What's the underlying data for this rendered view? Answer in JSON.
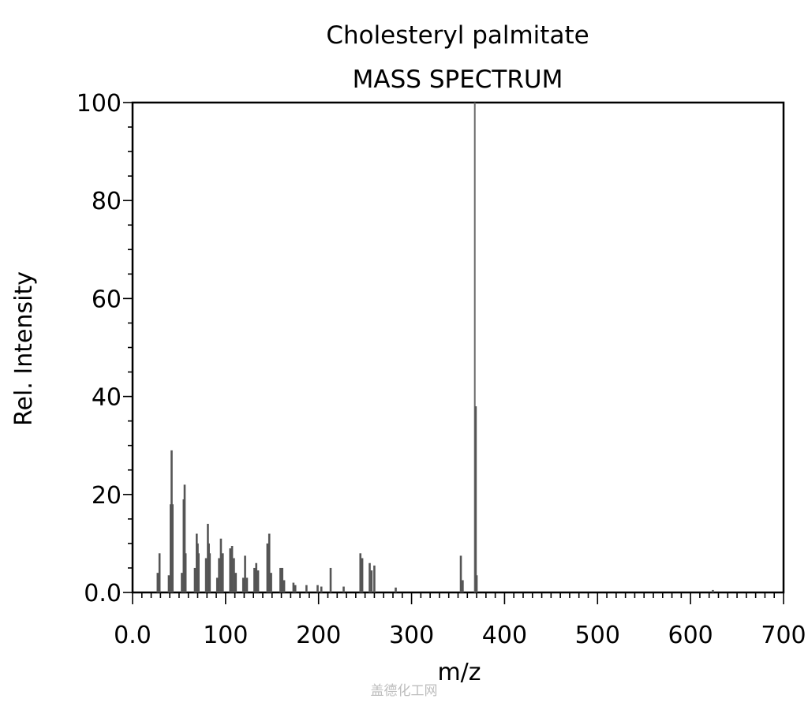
{
  "chart_data": {
    "type": "bar",
    "title": "Cholesteryl palmitate",
    "subtitle": "MASS SPECTRUM",
    "xlabel": "m/z",
    "ylabel": "Rel. Intensity",
    "xlim": [
      0,
      700
    ],
    "ylim": [
      0,
      100
    ],
    "x_ticks": [
      0,
      100,
      200,
      300,
      400,
      500,
      600,
      700
    ],
    "x_tick_labels": [
      "0.0",
      "100",
      "200",
      "300",
      "400",
      "500",
      "600",
      "700"
    ],
    "y_ticks": [
      0,
      20,
      40,
      60,
      80,
      100
    ],
    "y_tick_labels": [
      "0.0",
      "20",
      "40",
      "60",
      "80",
      "100"
    ],
    "grid": false,
    "series": [
      {
        "x": [
          27,
          29,
          39,
          41,
          42,
          43,
          53,
          55,
          56,
          57,
          67,
          69,
          70,
          71,
          79,
          81,
          82,
          83,
          91,
          93,
          95,
          97,
          105,
          107,
          109,
          111,
          119,
          121,
          123,
          131,
          133,
          135,
          145,
          147,
          149,
          159,
          161,
          163,
          173,
          175,
          187,
          199,
          203,
          213,
          227,
          245,
          247,
          255,
          257,
          260,
          283,
          353,
          355,
          368,
          369,
          370,
          624
        ],
        "y": [
          4,
          8,
          3.5,
          18,
          29,
          18,
          4,
          19,
          22,
          8,
          5,
          12,
          10,
          8,
          7,
          14,
          10,
          8,
          3,
          7,
          11,
          8,
          9,
          9.5,
          7,
          4,
          3,
          7.5,
          3,
          5,
          6,
          4.5,
          10,
          12,
          4,
          5,
          5,
          2.5,
          2,
          1.5,
          1.5,
          1.5,
          1.2,
          5,
          1.2,
          8,
          7,
          6,
          4.5,
          5.5,
          1,
          7.5,
          2.5,
          100,
          38,
          3.5,
          0.5
        ]
      }
    ]
  },
  "watermark": "盖德化工网"
}
